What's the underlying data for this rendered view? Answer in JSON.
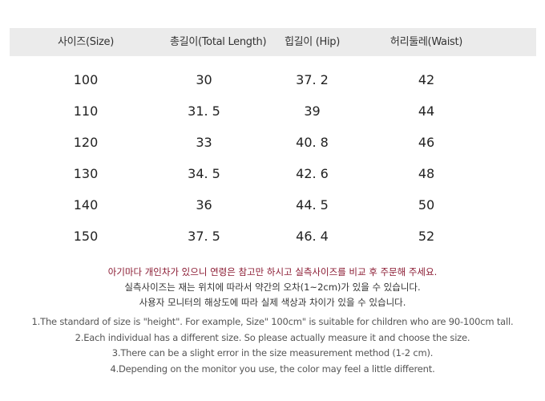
{
  "table": {
    "headers": [
      "사이즈(Size)",
      "총길이(Total Length)",
      "힙길이 (Hip)",
      "허리둘레(Waist)"
    ],
    "rows": [
      [
        "100",
        "30",
        "37. 2",
        "42"
      ],
      [
        "110",
        "31. 5",
        "39",
        "44"
      ],
      [
        "120",
        "33",
        "40. 8",
        "46"
      ],
      [
        "130",
        "34. 5",
        "42. 6",
        "48"
      ],
      [
        "140",
        "36",
        "44. 5",
        "50"
      ],
      [
        "150",
        "37. 5",
        "46. 4",
        "52"
      ]
    ]
  },
  "notes_ko": [
    "아기마다 개인차가 있으니 연령은 참고만 하시고 실측사이즈를 비교 후 주문해 주세요.",
    "실측사이즈는 재는 위치에 따라서 약간의  오차(1~2cm)가 있을 수 있습니다.",
    "사용자 모니터의 해상도에 따라 실제 색상과 차이가 있을 수 있습니다."
  ],
  "notes_en": [
    "1.The standard of size is \"height\". For example,  Size\" 100cm\" is suitable for children who are 90-100cm tall.",
    "2.Each individual has a different size. So please actually measure it and choose the size.",
    "3.There can be a slight error in the size measurement method (1-2 cm).",
    "4.Depending on the monitor you use, the color may feel a little different."
  ],
  "colors": {
    "header_bg": "#ebebeb",
    "warning_text": "#8a1a32"
  }
}
